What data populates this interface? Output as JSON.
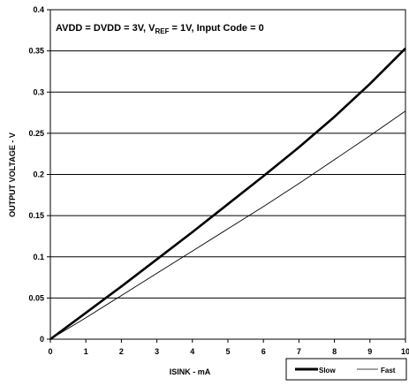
{
  "chart_data": {
    "type": "line",
    "title": {
      "prefix": "AVDD = DVDD = 3V, V",
      "subscript": "REF",
      "suffix": " = 1V, Input Code = 0"
    },
    "xlabel": "ISINK - mA",
    "ylabel": "OUTPUT VOLTAGE - V",
    "xlim": [
      0,
      10
    ],
    "ylim": [
      0,
      0.4
    ],
    "x_ticks": [
      "0",
      "1",
      "2",
      "3",
      "4",
      "5",
      "6",
      "7",
      "8",
      "9",
      "10"
    ],
    "y_ticks": [
      "0",
      "0.05",
      "0.1",
      "0.15",
      "0.2",
      "0.25",
      "0.3",
      "0.35",
      "0.4"
    ],
    "grid": "horizontal",
    "legend_position": "bottom-right",
    "series": [
      {
        "name": "Slow",
        "line": "thick",
        "x": [
          0,
          1,
          2,
          3,
          4,
          5,
          6,
          7,
          8,
          9,
          10
        ],
        "y": [
          0,
          0.032,
          0.064,
          0.097,
          0.13,
          0.164,
          0.198,
          0.233,
          0.27,
          0.31,
          0.353
        ]
      },
      {
        "name": "Fast",
        "line": "thin",
        "x": [
          0,
          1,
          2,
          3,
          4,
          5,
          6,
          7,
          8,
          9,
          10
        ],
        "y": [
          0,
          0.026,
          0.053,
          0.08,
          0.107,
          0.134,
          0.161,
          0.189,
          0.218,
          0.247,
          0.277
        ]
      }
    ],
    "colors": {
      "line": "#000000",
      "grid": "#000000",
      "background": "#ffffff"
    }
  }
}
